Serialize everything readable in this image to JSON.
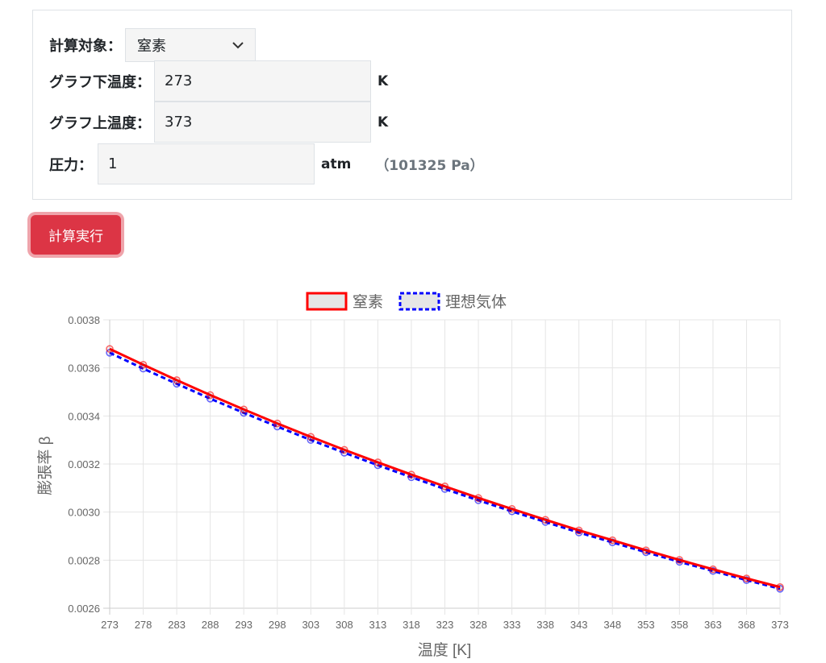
{
  "form": {
    "target_label": "計算対象：",
    "target_value": "窒素",
    "lower_temp_label": "グラフ下温度：",
    "lower_temp_value": "273",
    "lower_temp_unit": "K",
    "upper_temp_label": "グラフ上温度：",
    "upper_temp_value": "373",
    "upper_temp_unit": "K",
    "pressure_label": "圧力：",
    "pressure_value": "1",
    "pressure_unit": "atm",
    "pressure_pa": "（101325 Pa）"
  },
  "run_button": "計算実行",
  "chart_data": {
    "type": "line",
    "xlabel": "温度 [K]",
    "ylabel": "膨張率 β",
    "ylim": [
      0.0026,
      0.0038
    ],
    "yticks": [
      "0.0026",
      "0.0028",
      "0.0030",
      "0.0032",
      "0.0034",
      "0.0036",
      "0.0038"
    ],
    "grid": true,
    "legend": "top",
    "x": [
      273,
      278,
      283,
      288,
      293,
      298,
      303,
      308,
      313,
      318,
      323,
      328,
      333,
      338,
      343,
      348,
      353,
      358,
      363,
      368,
      373
    ],
    "series": [
      {
        "name": "窒素",
        "color": "#ff0000",
        "style": "solid",
        "values": [
          0.003679,
          0.003613,
          0.003549,
          0.003487,
          0.003427,
          0.003369,
          0.003313,
          0.003259,
          0.003207,
          0.003156,
          0.003107,
          0.003059,
          0.003013,
          0.002968,
          0.002924,
          0.002883,
          0.002841,
          0.002801,
          0.002762,
          0.002724,
          0.002688
        ]
      },
      {
        "name": "理想気体",
        "color": "#0000ff",
        "style": "dashed",
        "values": [
          0.003663,
          0.003597,
          0.003534,
          0.003472,
          0.003413,
          0.003356,
          0.0033,
          0.003247,
          0.003195,
          0.003145,
          0.003096,
          0.003049,
          0.003003,
          0.002959,
          0.002915,
          0.002874,
          0.002833,
          0.002793,
          0.002755,
          0.002717,
          0.002681
        ]
      }
    ]
  }
}
